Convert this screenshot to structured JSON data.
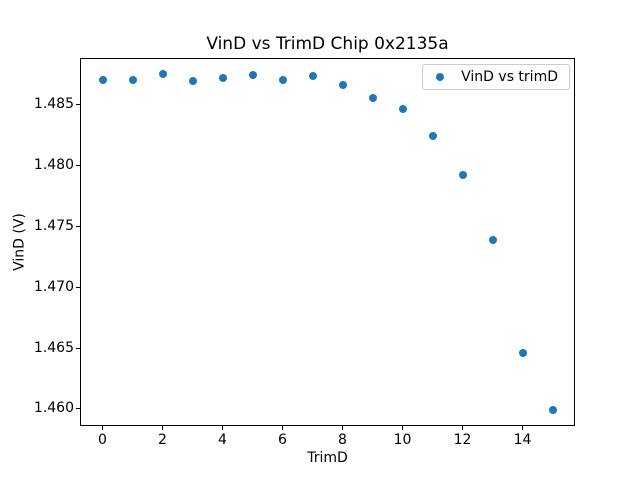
{
  "figure": {
    "background": "#ffffff",
    "text_color": "#000000",
    "spine_color": "#000000"
  },
  "chart_data": {
    "type": "scatter",
    "title": "VinD vs TrimD Chip 0x2135a",
    "xlabel": "TrimD",
    "ylabel": "VinD (V)",
    "legend": {
      "label": "VinD vs trimD",
      "position": "upper right",
      "border_color": "#cccccc"
    },
    "marker_color": "#1f77b4",
    "marker_size_px": 8,
    "x": [
      0,
      1,
      2,
      3,
      4,
      5,
      6,
      7,
      8,
      9,
      10,
      11,
      12,
      13,
      14,
      15
    ],
    "y": [
      1.487,
      1.487,
      1.4875,
      1.4869,
      1.4872,
      1.4874,
      1.487,
      1.4873,
      1.4866,
      1.4855,
      1.4846,
      1.4824,
      1.4792,
      1.4739,
      1.4646,
      1.4599
    ],
    "xlim": [
      -0.75,
      15.75
    ],
    "ylim": [
      1.4586,
      1.4888
    ],
    "xticks": [
      0,
      2,
      4,
      6,
      8,
      10,
      12,
      14
    ],
    "yticks": [
      1.46,
      1.465,
      1.47,
      1.475,
      1.48,
      1.485
    ],
    "ytick_decimals": 3,
    "grid": false
  }
}
